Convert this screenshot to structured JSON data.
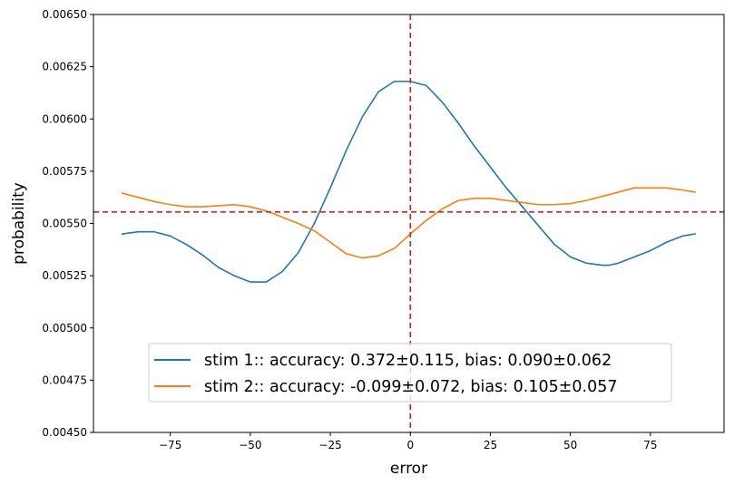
{
  "chart_data": {
    "type": "line",
    "title": "",
    "xlabel": "error",
    "ylabel": "probability",
    "xlim": [
      -99,
      98
    ],
    "ylim": [
      0.0045,
      0.0065
    ],
    "xticks": [
      -75,
      -50,
      -25,
      0,
      25,
      50,
      75
    ],
    "xtick_labels": [
      "−75",
      "−50",
      "−25",
      "0",
      "25",
      "50",
      "75"
    ],
    "yticks": [
      0.0045,
      0.00475,
      0.005,
      0.00525,
      0.0055,
      0.00575,
      0.006,
      0.00625,
      0.0065
    ],
    "ytick_labels": [
      "0.00450",
      "0.00475",
      "0.00500",
      "0.00525",
      "0.00550",
      "0.00575",
      "0.00600",
      "0.00625",
      "0.00650"
    ],
    "grid": false,
    "legend_position": "bottom-center",
    "series": [
      {
        "name": "stim 1:: accuracy: 0.372±0.115, bias: 0.090±0.062",
        "color": "#1f77b4",
        "x": [
          -90,
          -85,
          -80,
          -75,
          -70,
          -65,
          -60,
          -55,
          -50,
          -47,
          -45,
          -40,
          -35,
          -30,
          -25,
          -20,
          -15,
          -10,
          -5,
          0,
          5,
          10,
          15,
          20,
          25,
          30,
          35,
          40,
          45,
          50,
          55,
          60,
          62,
          65,
          70,
          75,
          80,
          85,
          89
        ],
        "y": [
          0.00545,
          0.00546,
          0.00546,
          0.00544,
          0.0054,
          0.00535,
          0.00529,
          0.00525,
          0.00522,
          0.00522,
          0.00522,
          0.00527,
          0.00536,
          0.0055,
          0.00567,
          0.00585,
          0.00601,
          0.00613,
          0.00618,
          0.00618,
          0.00616,
          0.00608,
          0.00598,
          0.00587,
          0.00577,
          0.00567,
          0.00558,
          0.00549,
          0.0054,
          0.00534,
          0.00531,
          0.0053,
          0.0053,
          0.00531,
          0.00534,
          0.00537,
          0.00541,
          0.00544,
          0.00545
        ]
      },
      {
        "name": "stim 2:: accuracy: -0.099±0.072, bias: 0.105±0.057",
        "color": "#ff7f0e",
        "x": [
          -90,
          -85,
          -80,
          -75,
          -70,
          -65,
          -60,
          -55,
          -50,
          -45,
          -40,
          -35,
          -30,
          -25,
          -20,
          -15,
          -10,
          -5,
          0,
          5,
          10,
          15,
          20,
          25,
          30,
          35,
          40,
          45,
          50,
          55,
          60,
          65,
          70,
          75,
          80,
          85,
          89
        ],
        "y": [
          0.005645,
          0.005625,
          0.005605,
          0.00559,
          0.00558,
          0.00558,
          0.005585,
          0.00559,
          0.00558,
          0.00556,
          0.00553,
          0.0055,
          0.005465,
          0.00541,
          0.005355,
          0.005335,
          0.005345,
          0.00538,
          0.00545,
          0.005515,
          0.00557,
          0.00561,
          0.00562,
          0.00562,
          0.00561,
          0.0056,
          0.00559,
          0.00559,
          0.005595,
          0.00561,
          0.00563,
          0.00565,
          0.00567,
          0.00567,
          0.00567,
          0.00566,
          0.00565
        ]
      }
    ],
    "reference_lines": [
      {
        "orientation": "vertical",
        "x": 0,
        "color": "#e31a1c",
        "style": "dashed"
      },
      {
        "orientation": "horizontal",
        "y": 0.005555,
        "color": "#e31a1c",
        "style": "dashed"
      }
    ]
  }
}
